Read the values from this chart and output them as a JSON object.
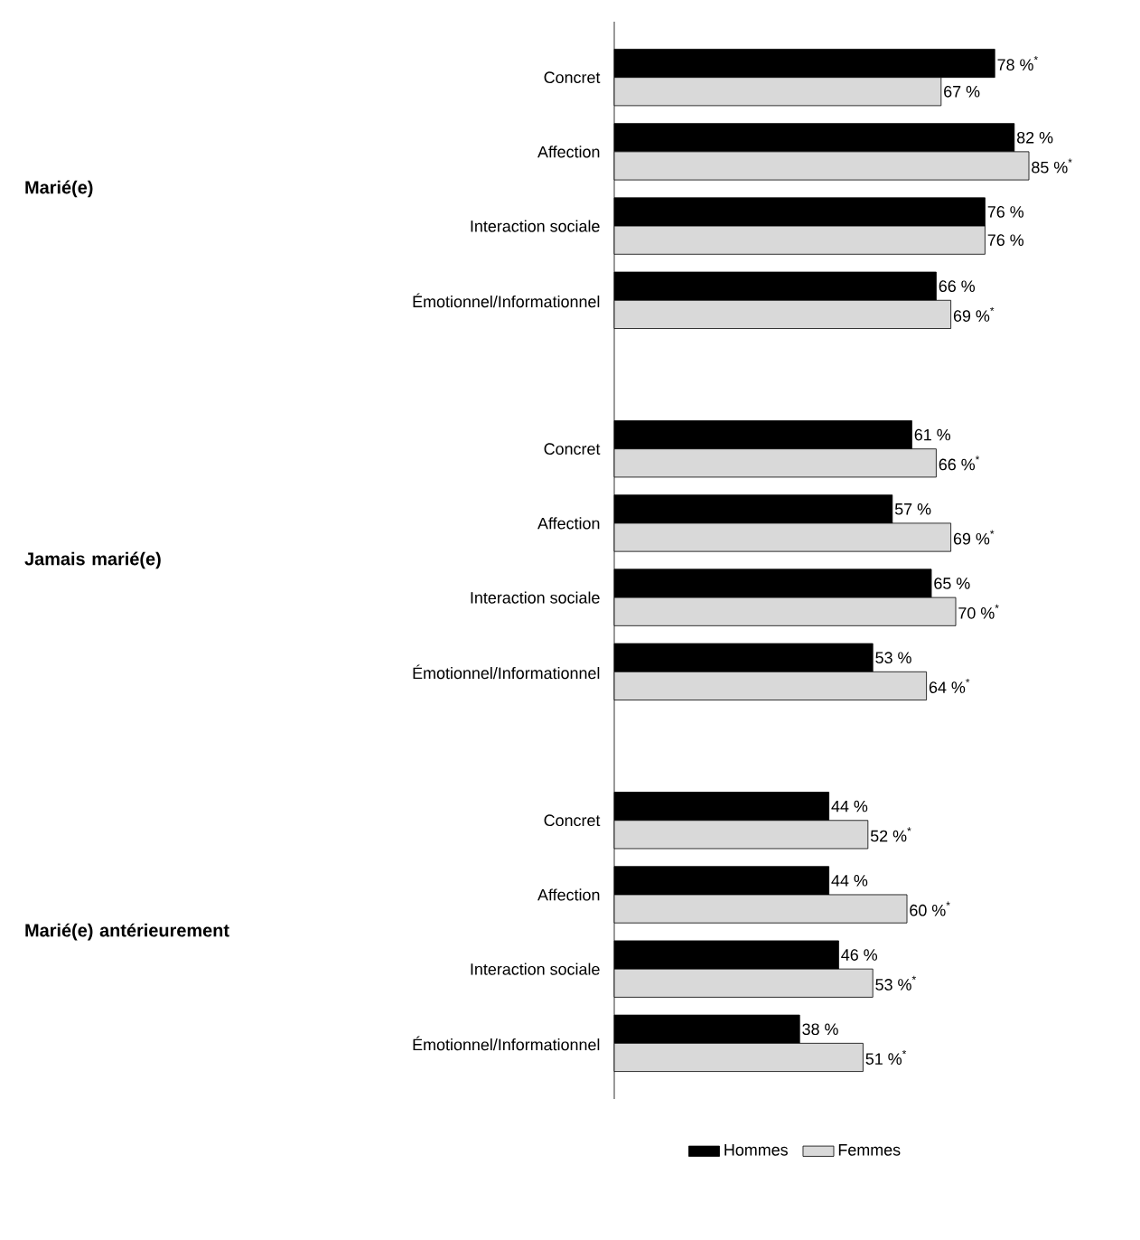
{
  "chart_data": {
    "type": "bar",
    "orientation": "horizontal",
    "legend": "bottom",
    "categories": [
      "Concret",
      "Affection",
      "Interaction sociale",
      "Émotionnel/Informationnel",
      "Concret",
      "Affection",
      "Interaction sociale",
      "Émotionnel/Informationnel",
      "Concret",
      "Affection",
      "Interaction sociale",
      "Émotionnel/Informationnel"
    ],
    "annotations": [
      "**Marié(e)**",
      "**Jamais marié(e)**",
      "**Marié(e) antérieurement**"
    ],
    "series": [
      {
        "name": "Hommes",
        "color": "#000000",
        "values": [
          78,
          82,
          76,
          66,
          61,
          57,
          65,
          53,
          44,
          44,
          46,
          38
        ],
        "value_labels": [
          "78 %$^{*}$",
          "82 %",
          "76 %",
          "66 %",
          "61 %",
          "57 %",
          "65 %",
          "53 %",
          "44 %",
          "44 %",
          "46 %",
          "38 %"
        ]
      },
      {
        "name": "Femmes",
        "color": "#d9d9d9",
        "values": [
          67,
          85,
          76,
          69,
          66,
          69,
          70,
          64,
          52,
          60,
          53,
          51
        ],
        "value_labels": [
          "67 %",
          "85 %$^{*}$",
          "76 %",
          "69 %$^{*}$",
          "66 %$^{*}$",
          "69 %$^{*}$",
          "70 %$^{*}$",
          "64 %$^{*}$",
          "52 %$^{*}$",
          "60 %$^{*}$",
          "53 %$^{*}$",
          "51 %$^{*}$"
        ]
      }
    ]
  }
}
